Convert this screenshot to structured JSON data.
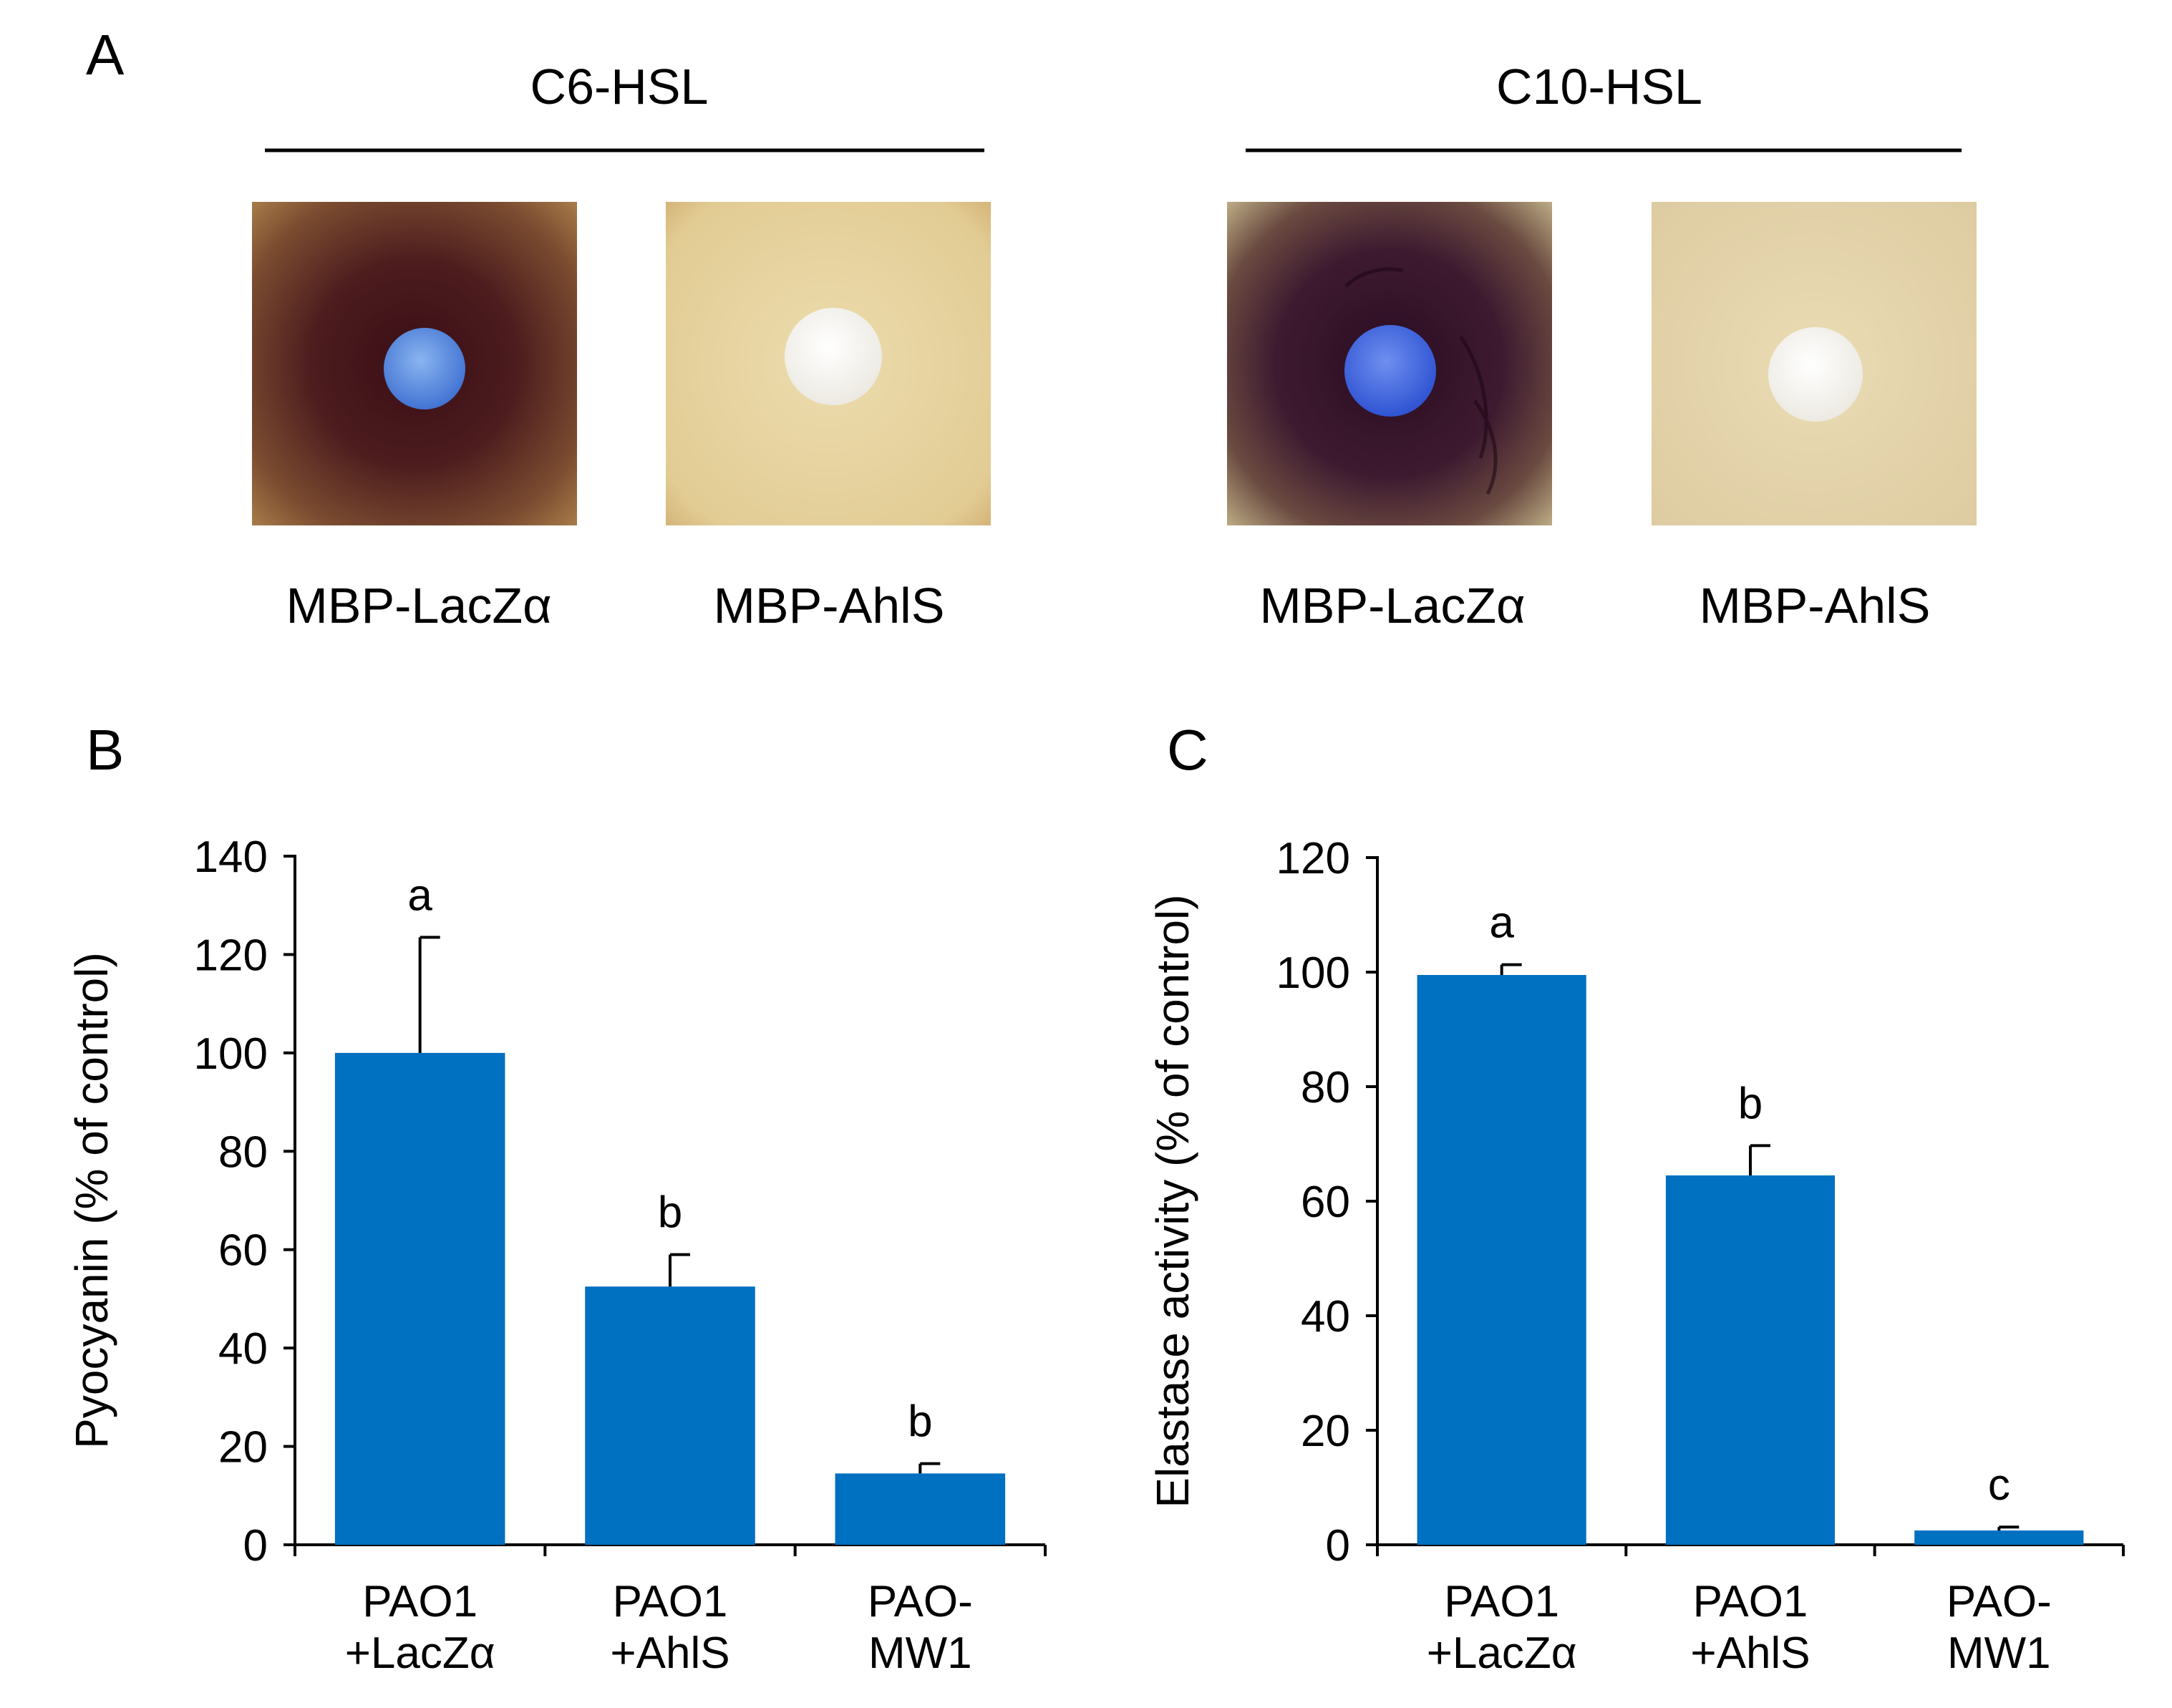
{
  "panel_a": {
    "label": "A",
    "groups": [
      {
        "title": "C6-HSL",
        "plates": [
          {
            "label": "MBP-LacZα",
            "result": "positive"
          },
          {
            "label": "MBP-AhlS",
            "result": "negative"
          }
        ]
      },
      {
        "title": "C10-HSL",
        "plates": [
          {
            "label": "MBP-LacZα",
            "result": "positive"
          },
          {
            "label": "MBP-AhlS",
            "result": "negative"
          }
        ]
      }
    ]
  },
  "chart_data": [
    {
      "panel": "B",
      "type": "bar",
      "categories": [
        [
          "PAO1",
          "+LacZα"
        ],
        [
          "PAO1",
          "+AhlS"
        ],
        [
          "PAO-",
          "MW1"
        ]
      ],
      "values": [
        100,
        52.5,
        14.5
      ],
      "errors": [
        23.5,
        6.5,
        2.0
      ],
      "significance": [
        "a",
        "b",
        "b"
      ],
      "ylabel": "Pyocyanin (% of control)",
      "ylim": [
        0,
        140
      ],
      "yticks": [
        0,
        20,
        40,
        60,
        80,
        100,
        120,
        140
      ],
      "bar_color": "#0070c0",
      "grid": false
    },
    {
      "panel": "C",
      "type": "bar",
      "categories": [
        [
          "PAO1",
          "+LacZα"
        ],
        [
          "PAO1",
          "+AhlS"
        ],
        [
          "PAO-",
          "MW1"
        ]
      ],
      "values": [
        99.5,
        64.5,
        2.5
      ],
      "errors": [
        1.8,
        5.2,
        0.6
      ],
      "significance": [
        "a",
        "b",
        "c"
      ],
      "ylabel": "Elastase activity (% of control)",
      "ylim": [
        0,
        120
      ],
      "yticks": [
        0,
        20,
        40,
        60,
        80,
        100,
        120
      ],
      "bar_color": "#0070c0",
      "grid": false
    }
  ]
}
